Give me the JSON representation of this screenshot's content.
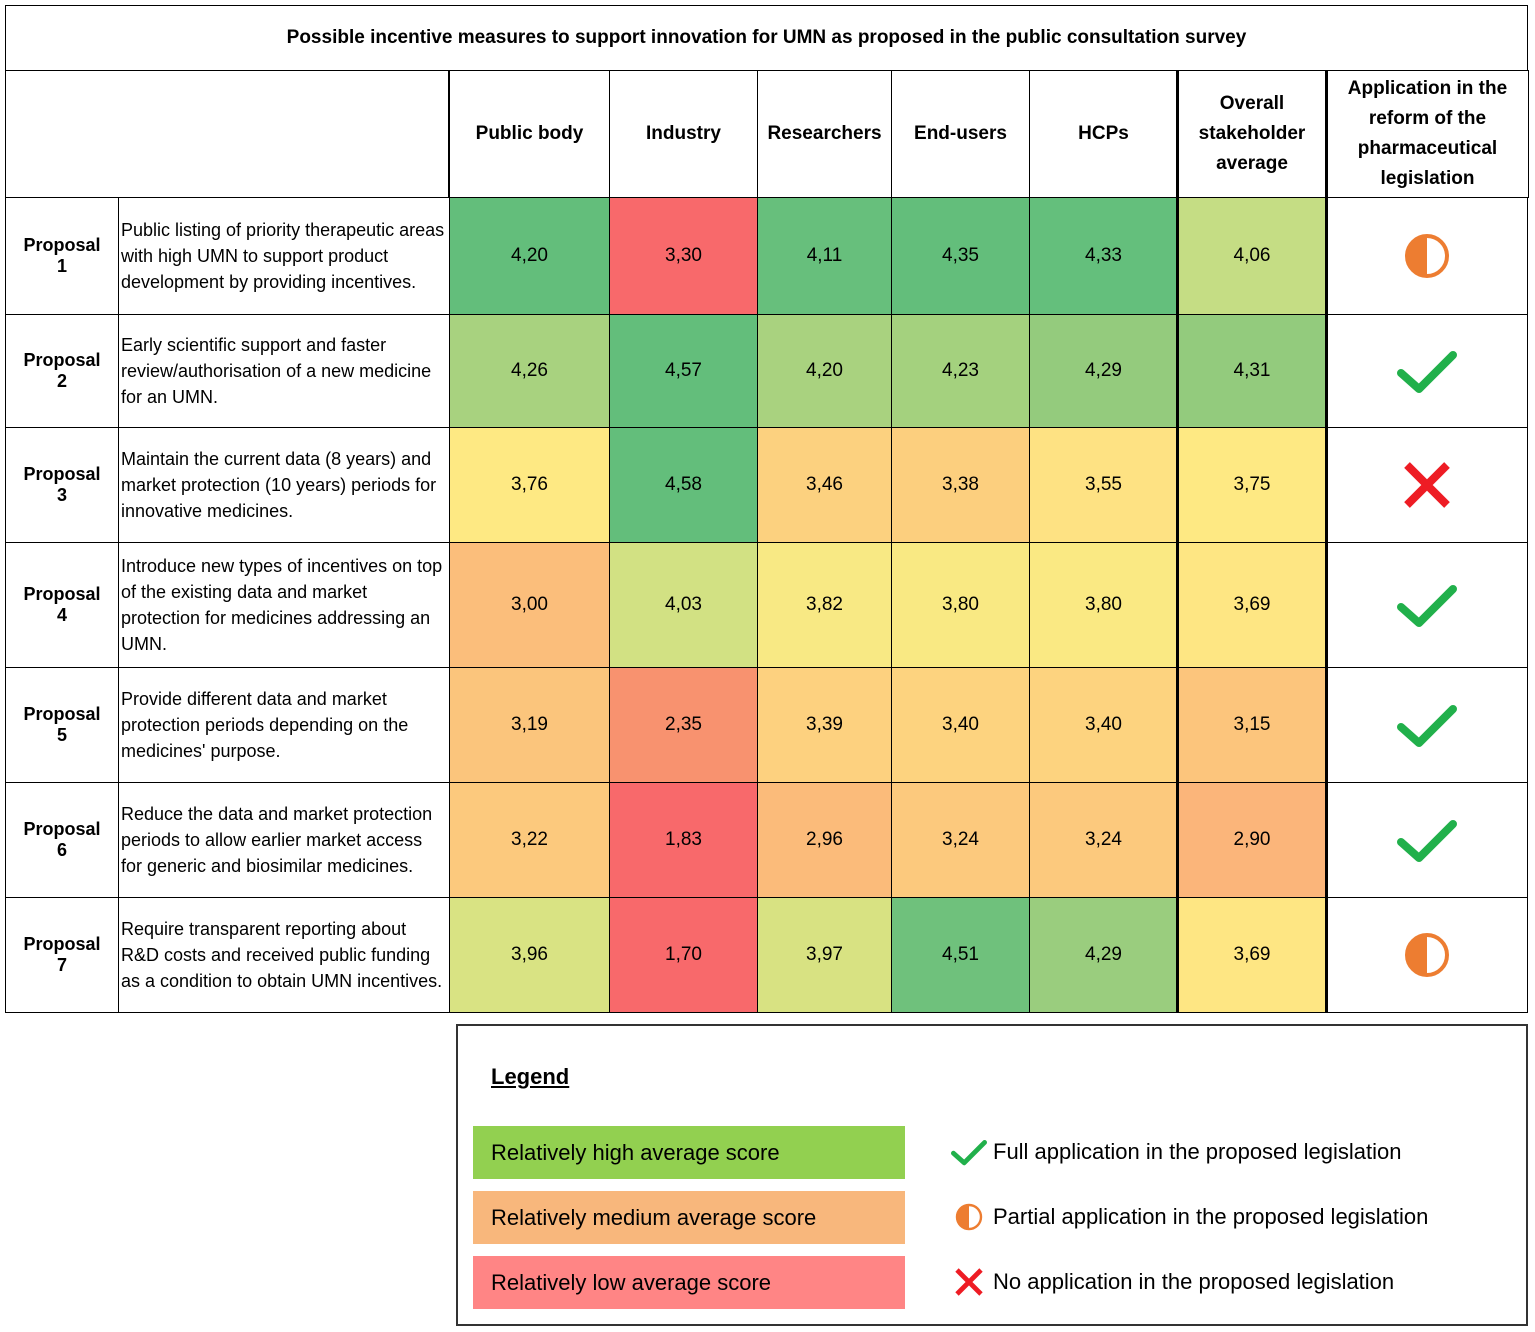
{
  "header": {
    "title": "Possible incentive measures to support innovation for UMN as proposed in the public consultation survey"
  },
  "table": {
    "columns": [
      "Public body",
      "Industry",
      "Researchers",
      "End-users",
      "HCPs",
      "Overall stakeholder average",
      "Application in the reform of the pharmaceutical legislation"
    ],
    "rows": [
      {
        "label": "Proposal 1",
        "text": "Public listing of priority therapeutic areas with high UMN to support product development by providing incentives.",
        "scores": [
          "4,20",
          "3,30",
          "4,11",
          "4,35",
          "4,33",
          "4,06"
        ],
        "colors": [
          "#63be7b",
          "#f8696b",
          "#67bf7c",
          "#63be7b",
          "#64bf7c",
          "#c5dd84"
        ]
      },
      {
        "label": "Proposal 2",
        "text": "Early scientific support and faster review/authorisation of a new medicine for an UMN.",
        "scores": [
          "4,26",
          "4,57",
          "4,20",
          "4,23",
          "4,29",
          "4,31"
        ],
        "colors": [
          "#a8d27f",
          "#63be7b",
          "#a9d27f",
          "#a4d17e",
          "#94cb7d",
          "#93cb7d"
        ]
      },
      {
        "label": "Proposal 3",
        "text": "Maintain the current data (8 years) and market protection (10 years) periods for innovative medicines.",
        "scores": [
          "3,76",
          "4,58",
          "3,46",
          "3,38",
          "3,55",
          "3,75"
        ],
        "colors": [
          "#fee983",
          "#63be7b",
          "#fcd17f",
          "#fccf7e",
          "#fee283",
          "#fee983"
        ]
      },
      {
        "label": "Proposal 4",
        "text": "Introduce new types of incentives on top of the existing data and market protection for medicines addressing an UMN.",
        "scores": [
          "3,00",
          "4,03",
          "3,82",
          "3,80",
          "3,80",
          "3,69"
        ],
        "colors": [
          "#fbbe7b",
          "#d2e183",
          "#f8e984",
          "#f9e983",
          "#fae983",
          "#fee683"
        ]
      },
      {
        "label": "Proposal 5",
        "text": "Provide different data and market protection periods depending on the medicines' purpose.",
        "scores": [
          "3,19",
          "2,35",
          "3,39",
          "3,40",
          "3,40",
          "3,15"
        ],
        "colors": [
          "#fbc57c",
          "#f8926f",
          "#fdd17f",
          "#fdd37f",
          "#fdd37f",
          "#fcc57c"
        ]
      },
      {
        "label": "Proposal 6",
        "text": "Reduce the data and market protection periods to allow earlier market access for generic and biosimilar medicines.",
        "scores": [
          "3,22",
          "1,83",
          "2,96",
          "3,24",
          "3,24",
          "2,90"
        ],
        "colors": [
          "#fcc97d",
          "#f8696b",
          "#fbbb7a",
          "#fcc97d",
          "#fcc97d",
          "#fbb57a"
        ]
      },
      {
        "label": "Proposal 7",
        "text": "Require transparent reporting about R&D costs and received public funding as a condition to obtain UMN incentives.",
        "scores": [
          "3,96",
          "1,70",
          "3,97",
          "4,51",
          "4,29",
          "3,69"
        ],
        "colors": [
          "#d9e383",
          "#f8696b",
          "#d8e282",
          "#6fc17c",
          "#9acd7e",
          "#fee683"
        ]
      }
    ]
  },
  "legend": {
    "title": "Legend",
    "scores": [
      {
        "label": "Relatively high average score",
        "color": "#92d050"
      },
      {
        "label": "Relatively medium average score",
        "color": "#f8b77c"
      },
      {
        "label": "Relatively low average score",
        "color": "#ff8585"
      }
    ],
    "icons": [
      "Full application in the proposed legislation",
      "Partial application in the proposed legislation",
      "No application in the proposed legislation"
    ]
  }
}
